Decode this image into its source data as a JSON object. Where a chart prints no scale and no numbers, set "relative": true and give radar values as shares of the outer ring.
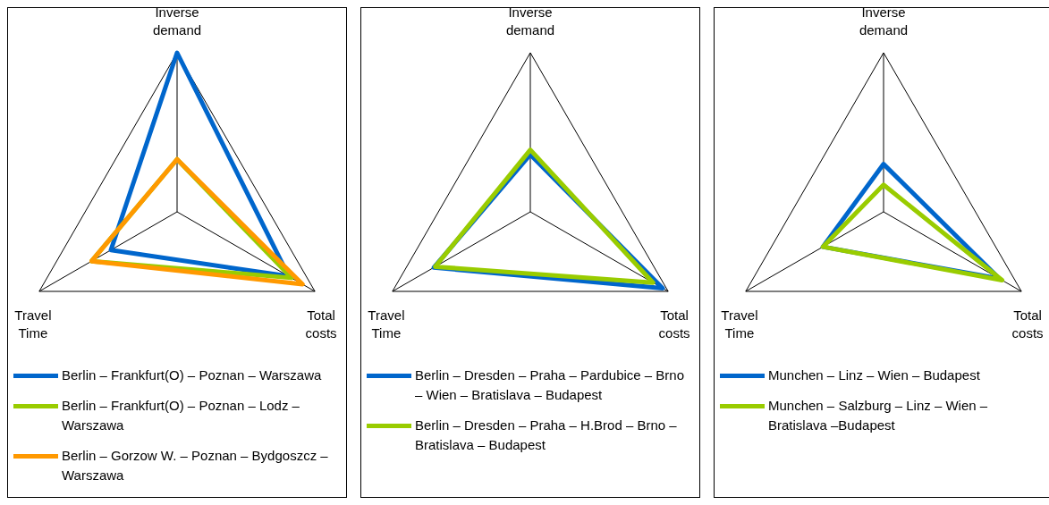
{
  "chart_data": [
    {
      "type": "radar",
      "relative": true,
      "categories": [
        "Inverse demand",
        "Total costs",
        "Travel Time"
      ],
      "legend": "bottom",
      "series": [
        {
          "name": "Berlin – Frankfurt(O) – Poznan – Warszawa",
          "color": "#0066cc",
          "values": [
            1.0,
            0.81,
            0.48
          ]
        },
        {
          "name": "Berlin – Frankfurt(O) – Poznan – Lodz – Warszawa",
          "color": "#99cc00",
          "values": [
            0.33,
            0.83,
            0.62
          ]
        },
        {
          "name": "Berlin – Gorzow W. –  Poznan – Bydgoszcz – Warszawa",
          "color": "#ff9900",
          "values": [
            0.33,
            0.91,
            0.62
          ]
        }
      ]
    },
    {
      "type": "radar",
      "relative": true,
      "categories": [
        "Inverse demand",
        "Total costs",
        "Travel Time"
      ],
      "legend": "bottom",
      "series": [
        {
          "name": "Berlin – Dresden – Praha – Pardubice –  Brno – Wien –  Bratislava – Budapest",
          "color": "#0066cc",
          "values": [
            0.36,
            0.96,
            0.7
          ]
        },
        {
          "name": "Berlin – Dresden – Praha – H.Brod – Brno – Bratislava – Budapest",
          "color": "#99cc00",
          "values": [
            0.39,
            0.89,
            0.69
          ]
        }
      ]
    },
    {
      "type": "radar",
      "relative": true,
      "categories": [
        "Inverse demand",
        "Total costs",
        "Travel Time"
      ],
      "legend": "bottom",
      "series": [
        {
          "name": "Munchen – Linz – Wien – Budapest",
          "color": "#0066cc",
          "values": [
            0.3,
            0.84,
            0.44
          ]
        },
        {
          "name": "Munchen – Salzburg – Linz – Wien – Bratislava –Budapest",
          "color": "#99cc00",
          "values": [
            0.17,
            0.86,
            0.44
          ]
        }
      ]
    }
  ]
}
